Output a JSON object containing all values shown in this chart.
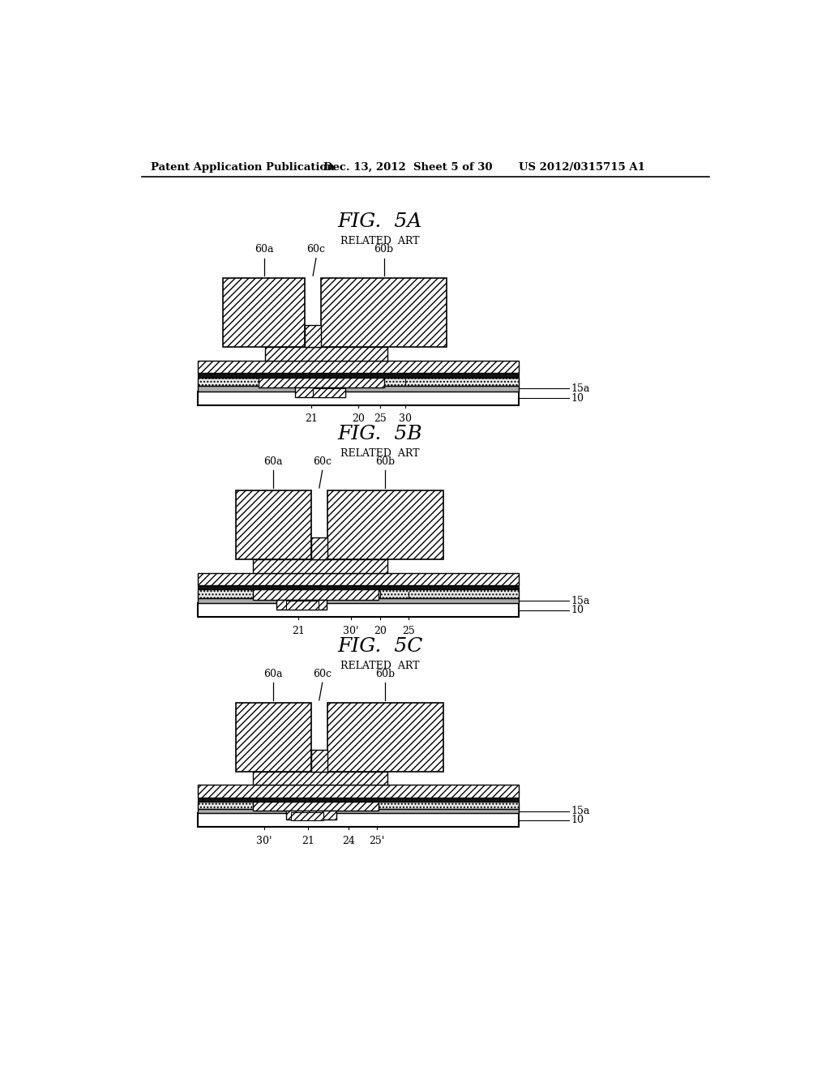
{
  "bg_color": "#ffffff",
  "header_left": "Patent Application Publication",
  "header_mid": "Dec. 13, 2012  Sheet 5 of 30",
  "header_right": "US 2012/0315715 A1",
  "fig5a_title": "FIG.  5A",
  "fig5b_title": "FIG.  5B",
  "fig5c_title": "FIG.  5C",
  "related_art": "RELATED  ART",
  "line_color": "#000000"
}
